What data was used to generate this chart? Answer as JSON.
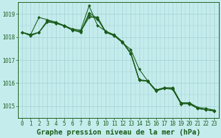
{
  "title": "Graphe pression niveau de la mer (hPa)",
  "background_color": "#c5eced",
  "grid_color": "#a0cfcf",
  "line_color": "#1a5c1a",
  "marker_color": "#1a5c1a",
  "xlim": [
    -0.5,
    23.5
  ],
  "ylim": [
    1014.5,
    1019.5
  ],
  "yticks": [
    1015,
    1016,
    1017,
    1018,
    1019
  ],
  "xticks": [
    0,
    1,
    2,
    3,
    4,
    5,
    6,
    7,
    8,
    9,
    10,
    11,
    12,
    13,
    14,
    15,
    16,
    17,
    18,
    19,
    20,
    21,
    22,
    23
  ],
  "series": [
    [
      1018.2,
      1018.1,
      1018.85,
      1018.75,
      1018.65,
      1018.5,
      1018.35,
      1018.3,
      1019.35,
      1018.5,
      1018.25,
      1018.1,
      1017.8,
      1017.3,
      1016.15,
      1016.1,
      1015.7,
      1015.8,
      1015.8,
      1015.15,
      1015.15,
      1014.95,
      1014.9,
      1014.83
    ],
    [
      1018.2,
      1018.1,
      1018.2,
      1018.7,
      1018.6,
      1018.5,
      1018.3,
      1018.2,
      1019.05,
      1018.8,
      1018.2,
      1018.05,
      1017.75,
      1017.45,
      1016.6,
      1016.1,
      1015.7,
      1015.8,
      1015.75,
      1015.1,
      1015.1,
      1014.9,
      1014.85,
      1014.8
    ],
    [
      1018.2,
      1018.05,
      1018.2,
      1018.65,
      1018.6,
      1018.48,
      1018.3,
      1018.25,
      1018.95,
      1018.77,
      1018.22,
      1018.08,
      1017.77,
      1017.27,
      1016.12,
      1016.08,
      1015.65,
      1015.77,
      1015.73,
      1015.1,
      1015.1,
      1014.9,
      1014.84,
      1014.78
    ],
    [
      1018.2,
      1018.1,
      1018.2,
      1018.7,
      1018.62,
      1018.48,
      1018.3,
      1018.25,
      1018.85,
      1018.87,
      1018.22,
      1018.08,
      1017.77,
      1017.27,
      1016.12,
      1016.08,
      1015.67,
      1015.77,
      1015.77,
      1015.12,
      1015.12,
      1014.92,
      1014.84,
      1014.8
    ]
  ],
  "marker": "D",
  "markersize": 2.0,
  "linewidth": 0.8,
  "title_fontsize": 7.5,
  "tick_fontsize": 5.5,
  "tick_color": "#1a5c1a",
  "axis_color": "#1a5c1a",
  "xlabel_pad": 2
}
